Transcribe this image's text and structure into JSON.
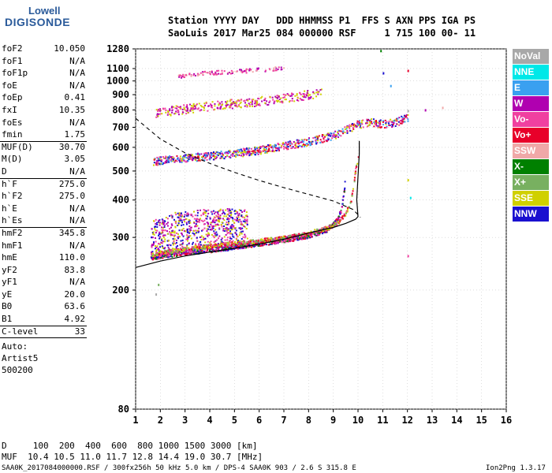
{
  "logo": {
    "top": "Lowell",
    "bottom": "DIGISONDE"
  },
  "header": {
    "line1": "Station YYYY DAY   DDD HHMMSS P1  FFS S AXN PPS IGA PS",
    "line2": "SaoLuis 2017 Mar25 084 000000 RSF     1 715 100 00- 11"
  },
  "params": [
    {
      "label": "foF2",
      "value": "10.050"
    },
    {
      "label": "foF1",
      "value": "N/A"
    },
    {
      "label": "foF1p",
      "value": "N/A"
    },
    {
      "label": "foE",
      "value": "N/A"
    },
    {
      "label": "foEp",
      "value": "0.41"
    },
    {
      "label": "fxI",
      "value": "10.35"
    },
    {
      "label": "foEs",
      "value": "N/A"
    },
    {
      "label": "fmin",
      "value": "1.75"
    },
    {
      "label": "MUF(D)",
      "value": "30.70"
    },
    {
      "label": "M(D)",
      "value": "3.05"
    },
    {
      "label": "D",
      "value": "N/A"
    },
    {
      "label": "h`F",
      "value": "275.0"
    },
    {
      "label": "h`F2",
      "value": "275.0"
    },
    {
      "label": "h`E",
      "value": "N/A"
    },
    {
      "label": "h`Es",
      "value": "N/A"
    },
    {
      "label": "hmF2",
      "value": "345.8"
    },
    {
      "label": "hmF1",
      "value": "N/A"
    },
    {
      "label": "hmE",
      "value": "110.0"
    },
    {
      "label": "yF2",
      "value": "83.8"
    },
    {
      "label": "yF1",
      "value": "N/A"
    },
    {
      "label": "yE",
      "value": "20.0"
    },
    {
      "label": "B0",
      "value": "63.6"
    },
    {
      "label": "B1",
      "value": "4.92"
    },
    {
      "label": "C-level",
      "value": "33"
    }
  ],
  "auto": {
    "line1": "Auto:",
    "line2": "Artist5",
    "line3": "500200"
  },
  "muf_table": {
    "line1": "D     100  200  400  600  800 1000 1500 3000 [km]",
    "line2": "MUF  10.4 10.5 11.0 11.7 12.8 14.4 19.0 30.7 [MHz]"
  },
  "footer": {
    "left": "SAA0K_2017084000000.RSF / 300fx256h 50 kHz 5.0 km / DPS-4 SAA0K 903 / 2.6 S 315.8 E",
    "right": "Ion2Png 1.3.17"
  },
  "legend": [
    {
      "label": "NoVal",
      "color": "#a8a8a8"
    },
    {
      "label": "NNE",
      "color": "#00e8e8"
    },
    {
      "label": "E",
      "color": "#3aa0f0"
    },
    {
      "label": "W",
      "color": "#b000b0"
    },
    {
      "label": "Vo-",
      "color": "#f040a0"
    },
    {
      "label": "Vo+",
      "color": "#e8002a"
    },
    {
      "label": "SSW",
      "color": "#f0a8a8"
    },
    {
      "label": "X-",
      "color": "#008000"
    },
    {
      "label": "X+",
      "color": "#78b060"
    },
    {
      "label": "SSE",
      "color": "#d0d000"
    },
    {
      "label": "NNW",
      "color": "#1a10d0"
    }
  ],
  "chart_data": {
    "type": "scatter",
    "xlim": [
      1,
      16
    ],
    "ylim": [
      80,
      1280
    ],
    "x_ticks": [
      1,
      2,
      3,
      4,
      5,
      6,
      7,
      8,
      9,
      10,
      11,
      12,
      13,
      14,
      15,
      16
    ],
    "y_ticks": [
      80,
      200,
      300,
      400,
      500,
      600,
      700,
      800,
      900,
      1000,
      1100,
      1280
    ],
    "x_tick_labels": [
      "1",
      "2",
      "3",
      "4",
      "5",
      "6",
      "7",
      "8",
      "9",
      "10",
      "11",
      "12",
      "13",
      "14",
      "15",
      "16"
    ],
    "y_tick_labels": [
      "80",
      "200",
      "300",
      "400",
      "500",
      "600",
      "700",
      "800",
      "900",
      "1000",
      "1100",
      "1280"
    ],
    "grid": true,
    "y_scale": "log",
    "profile_solid": [
      [
        1,
        238
      ],
      [
        2,
        250
      ],
      [
        3,
        260
      ],
      [
        4,
        268
      ],
      [
        5,
        276
      ],
      [
        6,
        285
      ],
      [
        7,
        296
      ],
      [
        8,
        310
      ],
      [
        9,
        324
      ],
      [
        9.5,
        334
      ],
      [
        9.9,
        345
      ],
      [
        10.0,
        352
      ],
      [
        9.95,
        400
      ],
      [
        10.0,
        480
      ],
      [
        10.05,
        570
      ],
      [
        10.05,
        630
      ]
    ],
    "profile_dashed": [
      [
        1,
        750
      ],
      [
        2,
        640
      ],
      [
        3,
        575
      ],
      [
        4,
        530
      ],
      [
        5,
        495
      ],
      [
        6,
        465
      ],
      [
        7,
        440
      ],
      [
        8,
        418
      ],
      [
        9,
        397
      ],
      [
        9.8,
        372
      ],
      [
        10.1,
        350
      ]
    ],
    "trace_o_f2": [
      [
        1.6,
        262
      ],
      [
        2,
        268
      ],
      [
        3,
        275
      ],
      [
        4,
        282
      ],
      [
        5,
        288
      ],
      [
        6,
        294
      ],
      [
        7,
        300
      ],
      [
        8,
        312
      ],
      [
        8.8,
        325
      ],
      [
        9.2,
        340
      ],
      [
        9.5,
        365
      ],
      [
        9.7,
        400
      ],
      [
        9.8,
        450
      ],
      [
        9.9,
        520
      ],
      [
        10.0,
        560
      ]
    ],
    "trace_x_f2": [
      [
        1.6,
        258
      ],
      [
        2,
        262
      ],
      [
        3,
        268
      ],
      [
        4,
        274
      ],
      [
        5,
        280
      ],
      [
        6,
        288
      ],
      [
        7,
        296
      ],
      [
        8,
        306
      ],
      [
        8.7,
        320
      ],
      [
        9.1,
        340
      ],
      [
        9.3,
        370
      ],
      [
        9.4,
        420
      ],
      [
        9.45,
        460
      ]
    ],
    "trace_2f": [
      [
        1.7,
        540
      ],
      [
        2,
        545
      ],
      [
        3,
        555
      ],
      [
        4,
        565
      ],
      [
        5,
        575
      ],
      [
        6,
        590
      ],
      [
        7,
        610
      ],
      [
        8,
        630
      ],
      [
        9,
        660
      ],
      [
        9.5,
        690
      ],
      [
        10,
        720
      ],
      [
        10.5,
        730
      ],
      [
        11,
        720
      ],
      [
        11.5,
        730
      ],
      [
        12,
        760
      ]
    ],
    "trace_3f": [
      [
        1.8,
        780
      ],
      [
        2,
        790
      ],
      [
        3,
        810
      ],
      [
        4,
        830
      ],
      [
        5,
        845
      ],
      [
        6,
        860
      ],
      [
        7,
        880
      ],
      [
        8,
        905
      ],
      [
        8.5,
        920
      ]
    ],
    "trace_4f": [
      [
        2.7,
        1040
      ],
      [
        3,
        1050
      ],
      [
        4,
        1070
      ],
      [
        5,
        1080
      ],
      [
        6,
        1095
      ],
      [
        7,
        1110
      ]
    ],
    "isolated_points": [
      [
        12.0,
        800
      ],
      [
        12.7,
        805
      ],
      [
        13.4,
        820
      ],
      [
        12.0,
        470
      ],
      [
        12.1,
        410
      ],
      [
        12.0,
        262
      ],
      [
        10.9,
        1270
      ],
      [
        11.0,
        1070
      ],
      [
        11.3,
        970
      ],
      [
        12.0,
        1090
      ],
      [
        1.9,
        210
      ],
      [
        1.8,
        195
      ]
    ]
  }
}
